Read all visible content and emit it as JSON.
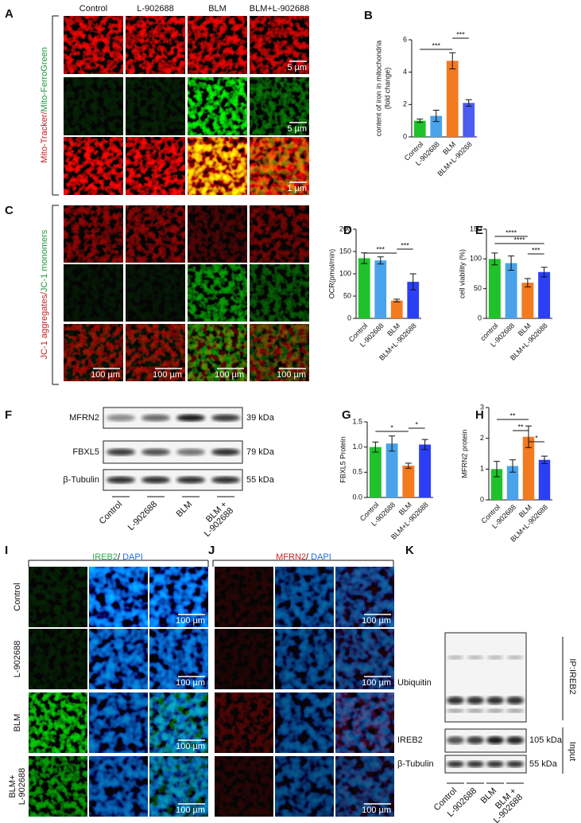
{
  "labels": [
    "A",
    "B",
    "C",
    "D",
    "E",
    "F",
    "G",
    "H",
    "I",
    "J",
    "K"
  ],
  "panel_A": {
    "columns": [
      "Control",
      "L-902688",
      "BLM",
      "BLM+L-902688"
    ],
    "side_label": [
      "Mito-Tracker",
      "/",
      "Mito-FerroGreen"
    ],
    "scale_bars": [
      "5 µm",
      "5 µm",
      "1 µm"
    ]
  },
  "panel_C": {
    "side_label": [
      "JC-1 aggregates",
      "/",
      "JC-1 monomers"
    ],
    "scale_bars": [
      "100 µm",
      "100 µm",
      "100 µm",
      "100 µm"
    ]
  },
  "panel_F": {
    "bands": [
      "MFRN2",
      "FBXL5",
      "β-Tubulin"
    ],
    "sizes": [
      "39 kDa",
      "79 kDa",
      "55 kDa"
    ],
    "lanes": [
      "Control",
      "L-902688",
      "BLM",
      [
        "BLM +",
        "L-902688"
      ]
    ]
  },
  "panel_I": {
    "title": [
      "IREB2",
      "/ ",
      "DAPI"
    ],
    "rows": [
      "Control",
      "L-902688",
      "BLM",
      [
        "BLM+",
        "L-902688"
      ]
    ],
    "scale_bars": [
      "100 µm",
      "100 µm",
      "100 µm",
      "100 µm"
    ]
  },
  "panel_J": {
    "title": [
      "MFRN2",
      "/ ",
      "DAPI"
    ],
    "scale_bars": [
      "100 µm",
      "100 µm",
      "100 µm"
    ]
  },
  "panel_K": {
    "bands": [
      "Ubiquitin",
      "IREB2",
      "β-Tubulin"
    ],
    "sizes": [
      "105 kDa",
      "55 kDa"
    ],
    "groups": [
      "IP:IREB2",
      "Input"
    ],
    "lanes": [
      "Control",
      "L-902688",
      "BLM",
      [
        "BLM +",
        "L-902688"
      ]
    ]
  },
  "chart_data": [
    {
      "type": "bar",
      "ylabel": [
        "content of iron in mitochondria",
        "(fold change)"
      ],
      "categories": [
        "Control",
        "L-902688",
        "BLM",
        "BLM+L-90268"
      ],
      "values": [
        1.0,
        1.3,
        4.7,
        2.1
      ],
      "errors": [
        0.1,
        0.35,
        0.5,
        0.2
      ],
      "colors": [
        "#1fc22a",
        "#4aa3ea",
        "#f47a20",
        "#4b5cf0"
      ],
      "ylim": [
        0,
        6
      ],
      "yticks": [
        0,
        2,
        4,
        6
      ],
      "annotations": [
        "***",
        "***"
      ]
    },
    {
      "type": "bar",
      "ylabel": [
        "OCR(pmol/min)"
      ],
      "categories": [
        "Control",
        "L-902688",
        "BLM",
        "BLM+L-902688"
      ],
      "values": [
        135,
        130,
        40,
        82
      ],
      "errors": [
        12,
        8,
        3,
        18
      ],
      "colors": [
        "#1fc22a",
        "#4aa3ea",
        "#f47a20",
        "#2b3ff5"
      ],
      "ylim": [
        0,
        200
      ],
      "yticks": [
        0,
        50,
        100,
        150,
        200
      ],
      "annotations": [
        "***",
        "***"
      ]
    },
    {
      "type": "bar",
      "ylabel": [
        "cell viability (%)"
      ],
      "categories": [
        "control",
        "L-902688",
        "BLM",
        "BLM+L-902688"
      ],
      "values": [
        100,
        93,
        60,
        78
      ],
      "errors": [
        10,
        12,
        7,
        8
      ],
      "colors": [
        "#1fc22a",
        "#4aa3ea",
        "#f47a20",
        "#2b3ff5"
      ],
      "ylim": [
        0,
        150
      ],
      "yticks": [
        0,
        50,
        100,
        150
      ],
      "annotations": [
        "****",
        "****",
        "***"
      ]
    },
    {
      "type": "bar",
      "ylabel": [
        "FBXL5 Protein"
      ],
      "categories": [
        "Control",
        "L-902688",
        "BLM",
        "BLM+L-902688"
      ],
      "values": [
        1.0,
        1.07,
        0.63,
        1.05
      ],
      "errors": [
        0.1,
        0.15,
        0.05,
        0.1
      ],
      "colors": [
        "#1fc22a",
        "#4aa3ea",
        "#f47a20",
        "#2b3ff5"
      ],
      "ylim": [
        0,
        1.5
      ],
      "yticks": [
        {
          "value": 0,
          "label": "0.0"
        },
        0.5,
        {
          "value": 1,
          "label": "1.0"
        },
        1.5
      ],
      "annotations": [
        "*",
        "*"
      ]
    },
    {
      "type": "bar",
      "ylabel": [
        "MFRN2 protein"
      ],
      "categories": [
        "Control",
        "L-902688",
        "BLM",
        "BLM+L-902688"
      ],
      "values": [
        1.0,
        1.1,
        2.05,
        1.3
      ],
      "errors": [
        0.25,
        0.2,
        0.35,
        0.12
      ],
      "colors": [
        "#1fc22a",
        "#4aa3ea",
        "#f47a20",
        "#2b3ff5"
      ],
      "ylim": [
        0,
        3
      ],
      "yticks": [
        0,
        1,
        2,
        3
      ],
      "annotations": [
        "**",
        "**",
        "*"
      ]
    }
  ]
}
